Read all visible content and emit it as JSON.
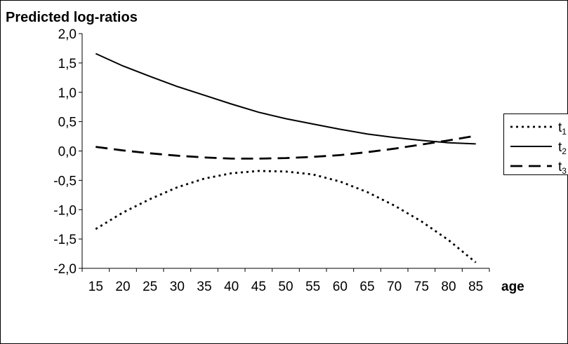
{
  "chart_data": {
    "type": "line",
    "title": "Predicted log-ratios",
    "xlabel": "age",
    "ylabel": "",
    "x": [
      15,
      20,
      25,
      30,
      35,
      40,
      45,
      50,
      55,
      60,
      65,
      70,
      75,
      80,
      85
    ],
    "y_ticks": [
      "2,0",
      "1,5",
      "1,0",
      "0,5",
      "0,0",
      "-0,5",
      "-1,0",
      "-1,5",
      "-2,0"
    ],
    "x_ticks": [
      "15",
      "20",
      "25",
      "30",
      "35",
      "40",
      "45",
      "50",
      "55",
      "60",
      "65",
      "70",
      "75",
      "80",
      "85"
    ],
    "ylim": [
      -2.0,
      2.0
    ],
    "grid": false,
    "legend_position": "right",
    "series": [
      {
        "name": "t",
        "subscript": "1",
        "style": "dotted",
        "values": [
          -1.33,
          -1.05,
          -0.82,
          -0.62,
          -0.47,
          -0.38,
          -0.34,
          -0.35,
          -0.4,
          -0.52,
          -0.7,
          -0.93,
          -1.2,
          -1.52,
          -1.9
        ]
      },
      {
        "name": "t",
        "subscript": "2",
        "style": "solid",
        "values": [
          1.66,
          1.45,
          1.27,
          1.1,
          0.95,
          0.8,
          0.66,
          0.55,
          0.46,
          0.37,
          0.29,
          0.23,
          0.18,
          0.14,
          0.12
        ]
      },
      {
        "name": "t",
        "subscript": "3",
        "style": "dashed",
        "values": [
          0.07,
          0.01,
          -0.04,
          -0.08,
          -0.11,
          -0.13,
          -0.13,
          -0.12,
          -0.1,
          -0.07,
          -0.02,
          0.04,
          0.11,
          0.18,
          0.26
        ]
      }
    ],
    "line_color": "#000000"
  }
}
